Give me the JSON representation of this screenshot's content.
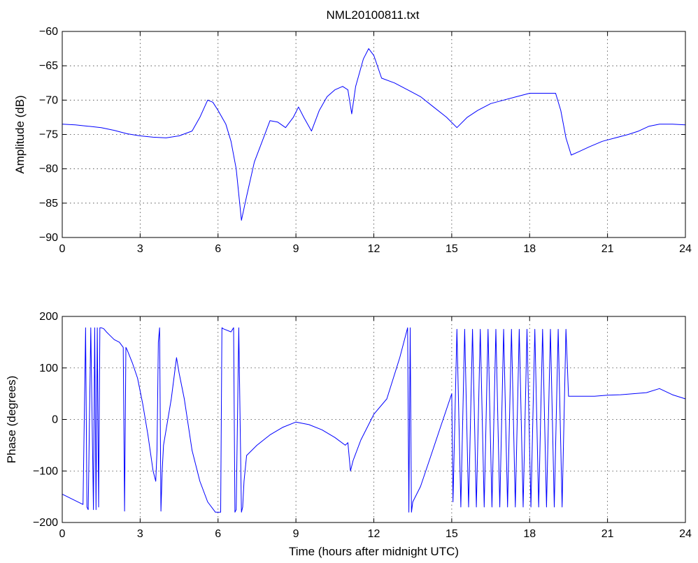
{
  "chart_data": [
    {
      "type": "line",
      "title": "NML20100811.txt",
      "xlabel": "",
      "ylabel": "Amplitude (dB)",
      "xlim": [
        0,
        24
      ],
      "ylim": [
        -90,
        -60
      ],
      "xticks": [
        0,
        3,
        6,
        9,
        12,
        15,
        18,
        21,
        24
      ],
      "yticks": [
        -90,
        -85,
        -80,
        -75,
        -70,
        -65,
        -60
      ],
      "grid": true,
      "series": [
        {
          "color": "#0000ff",
          "x": [
            0,
            0.5,
            1,
            1.5,
            2,
            2.5,
            3,
            3.5,
            4,
            4.5,
            5,
            5.3,
            5.6,
            5.8,
            6.0,
            6.3,
            6.5,
            6.7,
            6.9,
            7.1,
            7.4,
            7.7,
            8.0,
            8.3,
            8.6,
            8.9,
            9.1,
            9.3,
            9.6,
            9.9,
            10.2,
            10.5,
            10.8,
            11.0,
            11.15,
            11.3,
            11.6,
            11.8,
            12.0,
            12.3,
            12.8,
            13.3,
            13.8,
            14.3,
            14.8,
            15.2,
            15.6,
            16.0,
            16.5,
            17.0,
            17.5,
            18.0,
            18.5,
            19.0,
            19.2,
            19.4,
            19.6,
            19.9,
            20.3,
            20.8,
            21.3,
            21.8,
            22.2,
            22.6,
            23.0,
            23.5,
            24
          ],
          "y": [
            -73.5,
            -73.6,
            -73.8,
            -74.0,
            -74.4,
            -74.9,
            -75.2,
            -75.4,
            -75.5,
            -75.2,
            -74.5,
            -72.5,
            -70.0,
            -70.3,
            -71.5,
            -73.5,
            -76.0,
            -80.0,
            -87.5,
            -84.0,
            -79.0,
            -76.0,
            -73.0,
            -73.2,
            -74.0,
            -72.5,
            -71.0,
            -72.5,
            -74.5,
            -71.5,
            -69.5,
            -68.5,
            -68.0,
            -68.5,
            -72.0,
            -68.0,
            -64.0,
            -62.5,
            -63.5,
            -66.8,
            -67.5,
            -68.5,
            -69.5,
            -71.0,
            -72.5,
            -74.0,
            -72.5,
            -71.5,
            -70.5,
            -70.0,
            -69.5,
            -69.0,
            -69.0,
            -69.0,
            -71.5,
            -75.5,
            -78.0,
            -77.5,
            -76.8,
            -76.0,
            -75.5,
            -75.0,
            -74.5,
            -73.8,
            -73.5,
            -73.5,
            -73.6
          ]
        }
      ]
    },
    {
      "type": "line",
      "title": "",
      "xlabel": "Time (hours after midnight UTC)",
      "ylabel": "Phase (degrees)",
      "xlim": [
        0,
        24
      ],
      "ylim": [
        -200,
        200
      ],
      "xticks": [
        0,
        3,
        6,
        9,
        12,
        15,
        18,
        21,
        24
      ],
      "yticks": [
        -200,
        -100,
        0,
        100,
        200
      ],
      "grid": true,
      "series": [
        {
          "color": "#0000ff",
          "x": [
            0,
            0.4,
            0.8,
            0.9,
            0.95,
            1.0,
            1.1,
            1.2,
            1.25,
            1.3,
            1.35,
            1.4,
            1.45,
            1.5,
            1.6,
            1.7,
            1.8,
            2.0,
            2.2,
            2.35,
            2.4,
            2.45,
            2.5,
            2.7,
            2.9,
            3.1,
            3.3,
            3.5,
            3.6,
            3.65,
            3.7,
            3.75,
            3.8,
            3.85,
            3.9,
            4.0,
            4.2,
            4.4,
            4.5,
            4.7,
            5.0,
            5.3,
            5.6,
            5.9,
            6.1,
            6.15,
            6.2,
            6.5,
            6.6,
            6.65,
            6.7,
            6.8,
            6.9,
            6.95,
            7.0,
            7.1,
            7.5,
            8.0,
            8.5,
            9.0,
            9.5,
            10.0,
            10.5,
            10.9,
            11.0,
            11.1,
            11.2,
            11.5,
            12.0,
            12.5,
            13.0,
            13.3,
            13.35,
            13.4,
            13.45,
            13.5,
            13.8,
            14.2,
            14.6,
            15.0,
            15.05,
            15.2,
            15.35,
            15.5,
            15.65,
            15.8,
            15.95,
            16.1,
            16.25,
            16.4,
            16.55,
            16.7,
            16.85,
            17.0,
            17.15,
            17.3,
            17.45,
            17.6,
            17.75,
            17.9,
            18.05,
            18.2,
            18.35,
            18.5,
            18.65,
            18.8,
            18.95,
            19.1,
            19.25,
            19.4,
            19.5,
            19.6,
            20.0,
            20.5,
            21.0,
            21.5,
            22.0,
            22.5,
            23.0,
            23.5,
            24
          ],
          "y": [
            -145,
            -155,
            -165,
            178,
            -170,
            -175,
            178,
            -175,
            178,
            -175,
            178,
            -170,
            178,
            178,
            176,
            170,
            165,
            155,
            150,
            140,
            -178,
            140,
            135,
            110,
            80,
            30,
            -30,
            -100,
            -120,
            -60,
            150,
            178,
            -178,
            -100,
            -50,
            -20,
            40,
            120,
            90,
            40,
            -60,
            -120,
            -160,
            -180,
            -180,
            178,
            176,
            170,
            178,
            -180,
            -175,
            178,
            -180,
            -170,
            -120,
            -70,
            -50,
            -30,
            -15,
            -5,
            -10,
            -20,
            -35,
            -50,
            -45,
            -100,
            -80,
            -40,
            10,
            40,
            120,
            178,
            -180,
            178,
            -180,
            -160,
            -130,
            -70,
            -10,
            50,
            -160,
            175,
            -170,
            175,
            -170,
            175,
            -170,
            175,
            -170,
            175,
            -170,
            175,
            -170,
            175,
            -170,
            175,
            -170,
            175,
            -170,
            175,
            -170,
            175,
            -170,
            175,
            -170,
            175,
            -170,
            175,
            -170,
            175,
            45,
            45,
            45,
            45,
            47,
            48,
            50,
            52,
            60,
            48,
            40
          ]
        }
      ]
    }
  ]
}
